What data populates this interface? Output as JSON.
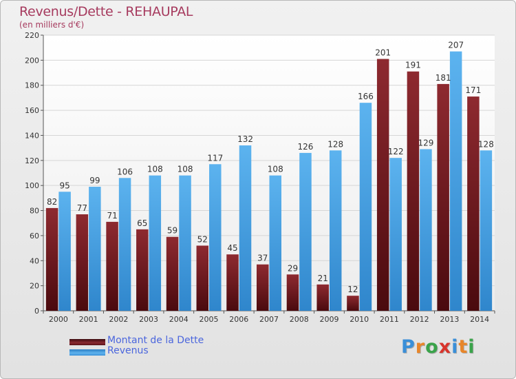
{
  "chart_data": {
    "type": "bar",
    "title": "Revenus/Dette - REHAUPAL",
    "subtitle": "(en milliers d'€)",
    "xlabel": "",
    "ylabel": "",
    "categories": [
      "2000",
      "2001",
      "2002",
      "2003",
      "2004",
      "2005",
      "2006",
      "2007",
      "2008",
      "2009",
      "2010",
      "2011",
      "2012",
      "2013",
      "2014"
    ],
    "series": [
      {
        "name": "Montant de la Dette",
        "color": "#7a1e24",
        "values": [
          82,
          77,
          71,
          65,
          59,
          52,
          45,
          37,
          29,
          21,
          12,
          201,
          191,
          181,
          171
        ]
      },
      {
        "name": "Revenus",
        "color": "#4aa3e6",
        "values": [
          95,
          99,
          106,
          108,
          108,
          117,
          132,
          108,
          126,
          128,
          166,
          122,
          129,
          207,
          128
        ]
      }
    ],
    "ylim": [
      0,
      220
    ],
    "yticks": [
      0,
      20,
      40,
      60,
      80,
      100,
      120,
      140,
      160,
      180,
      200,
      220
    ],
    "grid": true,
    "legend_position": "bottom-left"
  },
  "logo": {
    "text": "Proxiti",
    "letters": [
      {
        "char": "P",
        "color": "#3a8fd8"
      },
      {
        "char": "r",
        "color": "#e8862a"
      },
      {
        "char": "o",
        "color": "#3aa34a"
      },
      {
        "char": "x",
        "color": "#d8342c"
      },
      {
        "char": "i",
        "color": "#3a8fd8"
      },
      {
        "char": "t",
        "color": "#e8862a"
      },
      {
        "char": "i",
        "color": "#3aa34a"
      }
    ]
  }
}
